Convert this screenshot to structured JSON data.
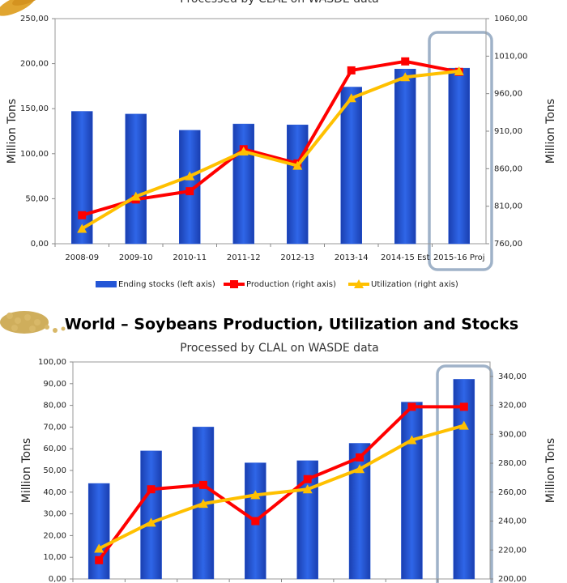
{
  "chart_data": [
    {
      "type": "bar_line",
      "subtitle": "Processed by CLAL on WASDE data",
      "ylabel": "Million Tons",
      "y2label": "Million Tons",
      "categories": [
        "2008-09",
        "2009-10",
        "2010-11",
        "2011-12",
        "2012-13",
        "2013-14",
        "2014-15 Est",
        "2015-16 Proj"
      ],
      "series": [
        {
          "name": "Ending stocks (left axis)",
          "kind": "bar",
          "color": "#2456d6",
          "values": [
            147,
            144,
            126,
            133,
            132,
            174,
            194,
            195
          ]
        },
        {
          "name": "Production (right axis)",
          "kind": "line",
          "marker": "square",
          "axis": "y2",
          "color": "#ff0000",
          "values": [
            798,
            819,
            830,
            886,
            867,
            991,
            1003,
            989
          ]
        },
        {
          "name": "Utilization (right axis)",
          "kind": "line",
          "marker": "triangle",
          "axis": "y2",
          "color": "#ffc000",
          "values": [
            780,
            823,
            850,
            883,
            864,
            954,
            982,
            990
          ]
        }
      ],
      "ylim": [
        0,
        250
      ],
      "yticks": [
        {
          "value": 0,
          "label": "0,00"
        },
        {
          "value": 50,
          "label": "50,00"
        },
        {
          "value": 100,
          "label": "100,00"
        },
        {
          "value": 150,
          "label": "150,00"
        },
        {
          "value": 200,
          "label": "200,00"
        },
        {
          "value": 250,
          "label": "250,00"
        }
      ],
      "y2lim": [
        760,
        1060
      ],
      "y2ticks": [
        {
          "value": 760,
          "label": "760,00"
        },
        {
          "value": 810,
          "label": "810,00"
        },
        {
          "value": 860,
          "label": "860,00"
        },
        {
          "value": 910,
          "label": "910,00"
        },
        {
          "value": 960,
          "label": "960,00"
        },
        {
          "value": 1010,
          "label": "1010,00"
        },
        {
          "value": 1060,
          "label": "1060,00"
        }
      ],
      "legend": "bottom"
    },
    {
      "type": "bar_line",
      "title": "World – Soybeans Production, Utilization and Stocks",
      "subtitle": "Processed by CLAL on WASDE data",
      "ylabel": "Million Tons",
      "y2label": "Million Tons",
      "categories": [
        null,
        null,
        null,
        null,
        null,
        null,
        null,
        null
      ],
      "series": [
        {
          "kind": "bar",
          "color": "#2456d6",
          "values": [
            44,
            59,
            70,
            53.5,
            54.5,
            62.5,
            81.5,
            92
          ]
        },
        {
          "kind": "line",
          "marker": "square",
          "axis": "y2",
          "color": "#ff0000",
          "values": [
            213,
            262,
            265,
            240,
            269,
            284,
            319,
            319
          ]
        },
        {
          "kind": "line",
          "marker": "triangle",
          "axis": "y2",
          "color": "#ffc000",
          "values": [
            221,
            239,
            252,
            258,
            262,
            276,
            296,
            306
          ]
        }
      ],
      "ylim": [
        0,
        100
      ],
      "yticks": [
        {
          "value": 0,
          "label": "0,00"
        },
        {
          "value": 10,
          "label": "10,00"
        },
        {
          "value": 20,
          "label": "20,00"
        },
        {
          "value": 30,
          "label": "30,00"
        },
        {
          "value": 40,
          "label": "40,00"
        },
        {
          "value": 50,
          "label": "50,00"
        },
        {
          "value": 60,
          "label": "60,00"
        },
        {
          "value": 70,
          "label": "70,00"
        },
        {
          "value": 80,
          "label": "80,00"
        },
        {
          "value": 90,
          "label": "90,00"
        },
        {
          "value": 100,
          "label": "100,00"
        }
      ],
      "y2lim": [
        200,
        350
      ],
      "y2ticks": [
        {
          "value": 200,
          "label": "200,00"
        },
        {
          "value": 220,
          "label": "220,00"
        },
        {
          "value": 240,
          "label": "240,00"
        },
        {
          "value": 260,
          "label": "260,00"
        },
        {
          "value": 280,
          "label": "280,00"
        },
        {
          "value": 300,
          "label": "300,00"
        },
        {
          "value": 320,
          "label": "320,00"
        },
        {
          "value": 340,
          "label": "340,00"
        }
      ]
    }
  ]
}
